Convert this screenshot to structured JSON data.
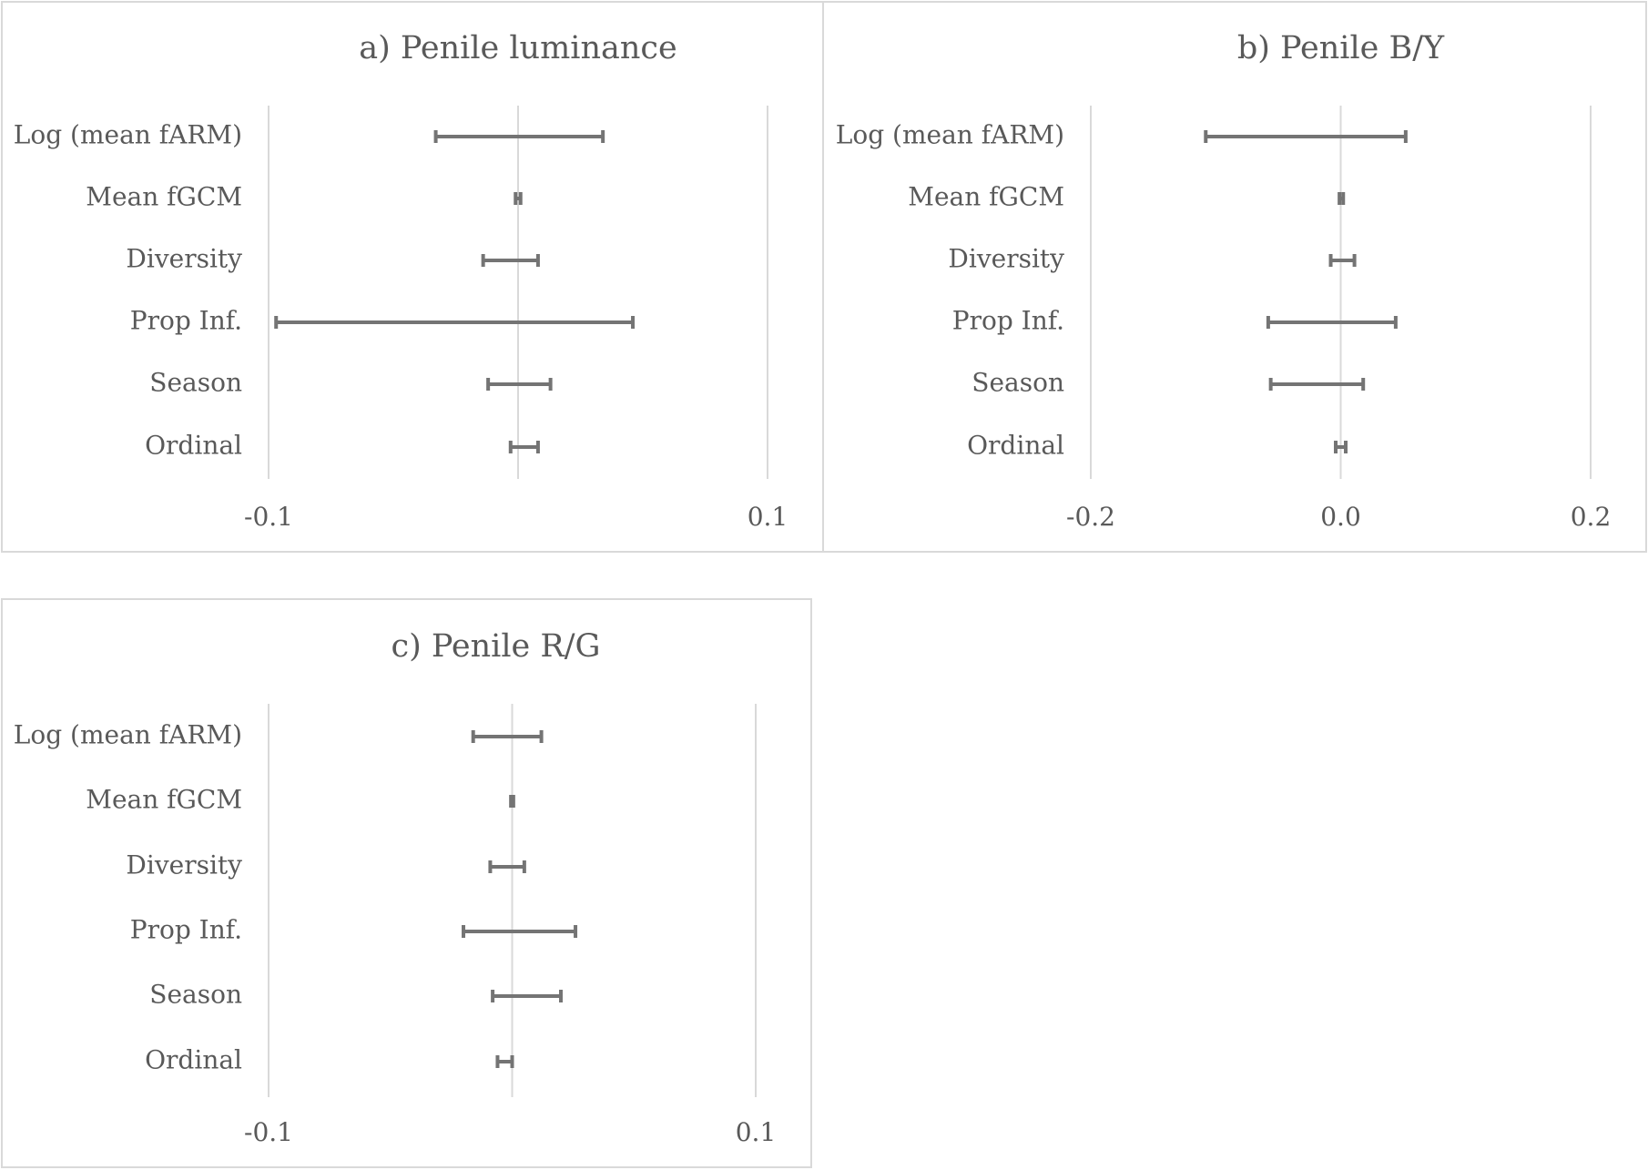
{
  "chart_data": [
    {
      "type": "errorbar",
      "title": "a) Penile luminance",
      "categories": [
        "Log (mean fARM)",
        "Mean fGCM",
        "Diversity",
        "Prop Inf.",
        "Season",
        "Ordinal"
      ],
      "intervals": [
        {
          "low": -0.033,
          "high": 0.034
        },
        {
          "low": -0.001,
          "high": 0.001
        },
        {
          "low": -0.014,
          "high": 0.008
        },
        {
          "low": -0.097,
          "high": 0.046
        },
        {
          "low": -0.012,
          "high": 0.013
        },
        {
          "low": -0.003,
          "high": 0.008
        }
      ],
      "xlim": [
        -0.1,
        0.1
      ],
      "ticks": [
        "-0.1",
        "0.1"
      ],
      "grid_values": [
        -0.1,
        0,
        0.1
      ],
      "grid": true,
      "legend": "none"
    },
    {
      "type": "errorbar",
      "title": "b) Penile B/Y",
      "categories": [
        "Log (mean fARM)",
        "Mean fGCM",
        "Diversity",
        "Prop Inf.",
        "Season",
        "Ordinal"
      ],
      "intervals": [
        {
          "low": -0.108,
          "high": 0.052
        },
        {
          "low": -0.001,
          "high": 0.002
        },
        {
          "low": -0.008,
          "high": 0.011
        },
        {
          "low": -0.058,
          "high": 0.044
        },
        {
          "low": -0.056,
          "high": 0.018
        },
        {
          "low": -0.004,
          "high": 0.004
        }
      ],
      "xlim": [
        -0.2,
        0.2
      ],
      "ticks": [
        "-0.2",
        "0.0",
        "0.2"
      ],
      "grid_values": [
        -0.2,
        0,
        0.2
      ],
      "grid": true,
      "legend": "none"
    },
    {
      "type": "errorbar",
      "title": "c) Penile R/G",
      "categories": [
        "Log (mean fARM)",
        "Mean fGCM",
        "Diversity",
        "Prop Inf.",
        "Season",
        "Ordinal"
      ],
      "intervals": [
        {
          "low": -0.016,
          "high": 0.012
        },
        {
          "low": -0.0005,
          "high": 0.0005
        },
        {
          "low": -0.009,
          "high": 0.005
        },
        {
          "low": -0.02,
          "high": 0.026
        },
        {
          "low": -0.008,
          "high": 0.02
        },
        {
          "low": -0.006,
          "high": 0
        }
      ],
      "xlim": [
        -0.1,
        0.1
      ],
      "ticks": [
        "-0.1",
        "0.1"
      ],
      "grid_values": [
        -0.1,
        0,
        0.1
      ],
      "grid": true,
      "legend": "none"
    }
  ],
  "colors": {
    "bar": "#747474",
    "grid": "#d9d9d9",
    "text": "#595959",
    "frame": "#d9d9d9"
  }
}
